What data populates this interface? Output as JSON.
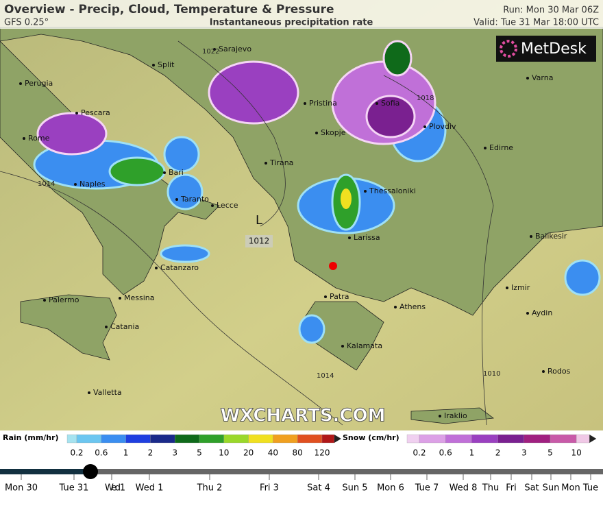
{
  "header": {
    "title": "Overview - Precip, Cloud, Temperature & Pressure",
    "model": "GFS 0.25°",
    "subtitle": "Instantaneous precipitation rate",
    "run": "Run: Mon 30 Mar 06Z",
    "valid": "Valid: Tue 31 Mar 18:00 UTC"
  },
  "logo": "MetDesk",
  "watermark": "WXCHARTS.COM",
  "cities": [
    "Sarajevo",
    "Split",
    "Perugia",
    "Pescara",
    "Pristina",
    "Sofia",
    "Varna",
    "Plovdiv",
    "Skopje",
    "Rome",
    "Edirne",
    "Tirana",
    "Bari",
    "Naples",
    "Thessaloniki",
    "Taranto",
    "Lecce",
    "Larissa",
    "Balikesir",
    "Catanzaro",
    "Izmir",
    "Palermo",
    "Messina",
    "Patra",
    "Athens",
    "Aydin",
    "Catania",
    "Kalamata",
    "Rodos",
    "Valletta",
    "Iraklio"
  ],
  "isobars": [
    1022,
    1018,
    1014,
    1014,
    1010
  ],
  "low": {
    "symbol": "L",
    "pressure": 1012
  },
  "rain_legend": {
    "label": "Rain (mm/hr)",
    "ticks": [
      0.2,
      0.6,
      1,
      2,
      3,
      5,
      10,
      20,
      40,
      80,
      120
    ],
    "colors": [
      "#a6e3f0",
      "#6cc6f0",
      "#3b8ef0",
      "#1f3fe0",
      "#1a2a8a",
      "#0f6a1a",
      "#2fa02a",
      "#9ad82a",
      "#f0e020",
      "#f0a020",
      "#e05020",
      "#b01818"
    ]
  },
  "snow_legend": {
    "label": "Snow (cm/hr)",
    "ticks": [
      0.2,
      0.6,
      1,
      2,
      3,
      5,
      10
    ],
    "colors": [
      "#f0d0f0",
      "#dca0e6",
      "#c070d8",
      "#9a40c0",
      "#7a2090",
      "#a02080",
      "#c85aa8",
      "#f0c8e6"
    ]
  },
  "timeline": [
    "Mon 30",
    "Tue 31",
    "Wed 1",
    "Wed 1",
    "Thu 2",
    "Fri 3",
    "Sat 4",
    "Sun 5",
    "Mon 6",
    "Tue 7",
    "Wed 8",
    "Thu",
    "Fri",
    "Sat",
    "Sun",
    "Mon",
    "Tue"
  ]
}
